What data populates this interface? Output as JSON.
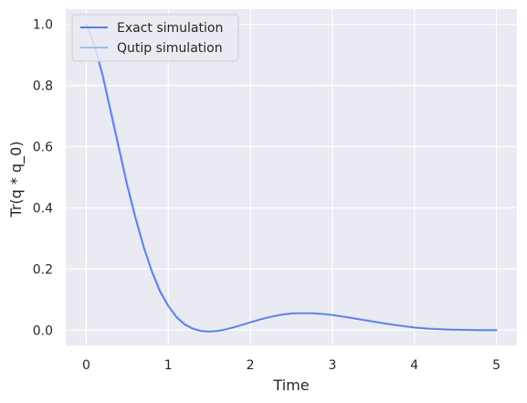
{
  "chart_data": {
    "type": "line",
    "xlabel": "Time",
    "ylabel": "Tr(q * q_0)",
    "xlim": [
      -0.25,
      5.25
    ],
    "ylim": [
      -0.05,
      1.05
    ],
    "xticks": [
      0,
      1,
      2,
      3,
      4,
      5
    ],
    "yticks": [
      0.0,
      0.2,
      0.4,
      0.6,
      0.8,
      1.0
    ],
    "xtick_labels": [
      "0",
      "1",
      "2",
      "3",
      "4",
      "5"
    ],
    "ytick_labels": [
      "0.0",
      "0.2",
      "0.4",
      "0.6",
      "0.8",
      "1.0"
    ],
    "grid": true,
    "legend_position": "top-left",
    "series": [
      {
        "name": "Exact simulation",
        "color": "#5b7be3",
        "x": [
          0,
          0.1,
          0.2,
          0.3,
          0.4,
          0.5,
          0.6,
          0.7,
          0.8,
          0.9,
          1.0,
          1.1,
          1.2,
          1.3,
          1.4,
          1.5,
          1.6,
          1.7,
          1.8,
          1.9,
          2.0,
          2.1,
          2.2,
          2.3,
          2.4,
          2.5,
          2.6,
          2.7,
          2.8,
          2.9,
          3.0,
          3.2,
          3.4,
          3.6,
          3.8,
          4.0,
          4.2,
          4.4,
          4.6,
          4.8,
          5.0
        ],
        "y": [
          1.0,
          0.93,
          0.83,
          0.71,
          0.59,
          0.47,
          0.365,
          0.27,
          0.19,
          0.125,
          0.078,
          0.042,
          0.018,
          0.004,
          -0.003,
          -0.005,
          -0.003,
          0.002,
          0.009,
          0.017,
          0.025,
          0.033,
          0.04,
          0.046,
          0.051,
          0.054,
          0.055,
          0.055,
          0.054,
          0.052,
          0.049,
          0.041,
          0.032,
          0.023,
          0.015,
          0.008,
          0.004,
          0.002,
          0.001,
          0.0,
          0.0
        ]
      },
      {
        "name": "Qutip simulation",
        "color": "#9fbcf5",
        "x": [
          0,
          0.1,
          0.2,
          0.3,
          0.4,
          0.5,
          0.6,
          0.7,
          0.8,
          0.9,
          1.0,
          1.1,
          1.2,
          1.3,
          1.4,
          1.5,
          1.6,
          1.7,
          1.8,
          1.9,
          2.0,
          2.1,
          2.2,
          2.3,
          2.4,
          2.5,
          2.6,
          2.7,
          2.8,
          2.9,
          3.0,
          3.2,
          3.4,
          3.6,
          3.8,
          4.0,
          4.2,
          4.4,
          4.6,
          4.8,
          5.0
        ],
        "y": [
          1.0,
          0.935,
          0.838,
          0.72,
          0.6,
          0.48,
          0.372,
          0.276,
          0.195,
          0.13,
          0.081,
          0.045,
          0.02,
          0.006,
          -0.002,
          -0.004,
          -0.002,
          0.003,
          0.01,
          0.018,
          0.026,
          0.034,
          0.041,
          0.047,
          0.052,
          0.055,
          0.056,
          0.056,
          0.055,
          0.053,
          0.05,
          0.042,
          0.033,
          0.024,
          0.016,
          0.009,
          0.005,
          0.002,
          0.001,
          0.0,
          0.0
        ]
      }
    ]
  }
}
